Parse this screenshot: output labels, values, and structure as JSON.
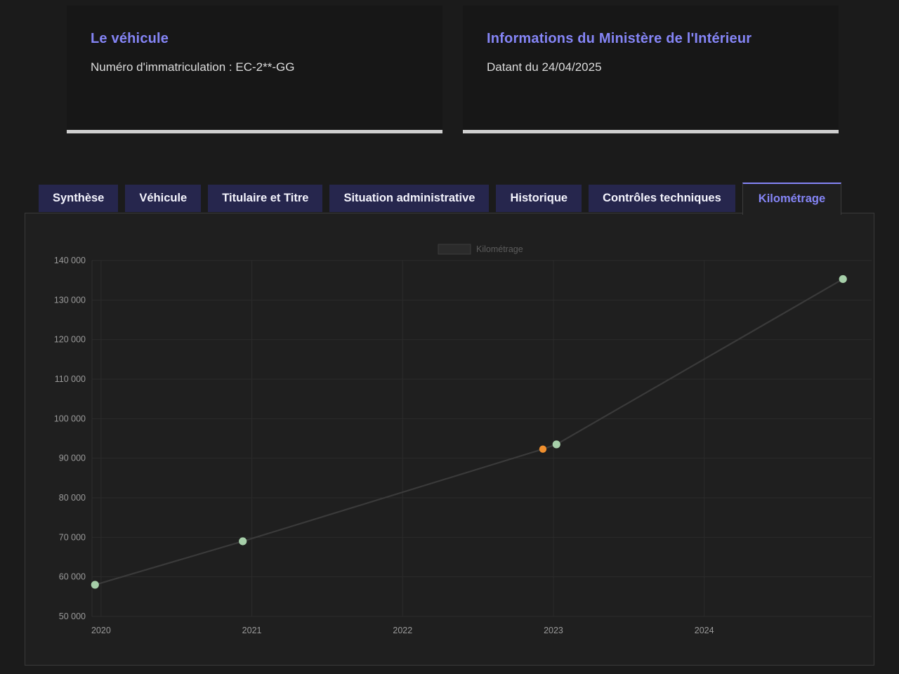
{
  "cards": [
    {
      "title": "Le véhicule",
      "subtitle": "Numéro d'immatriculation : EC-2**-GG"
    },
    {
      "title": "Informations du Ministère de l'Intérieur",
      "subtitle": "Datant du 24/04/2025"
    }
  ],
  "tabs": [
    {
      "label": "Synthèse",
      "active": false
    },
    {
      "label": "Véhicule",
      "active": false
    },
    {
      "label": "Titulaire et Titre",
      "active": false
    },
    {
      "label": "Situation administrative",
      "active": false
    },
    {
      "label": "Historique",
      "active": false
    },
    {
      "label": "Contrôles techniques",
      "active": false
    },
    {
      "label": "Kilométrage",
      "active": true
    }
  ],
  "colors": {
    "accent": "#8585f6",
    "page_bg": "#1b1b1b",
    "card_bg": "#171717",
    "card_bottom_bar": "#cfcfcf",
    "tab_bg": "#26264d",
    "panel_bg": "#1f1f1f",
    "panel_border": "#3a3a3a",
    "grid": "#2b2b2b",
    "axis_line": "#2e2e2e",
    "axis_text": "#9a9a9a",
    "line": "#3a3a3a",
    "point_green": "#a6cfa9",
    "point_orange": "#ef8f2e",
    "legend_text": "#5c5c5c",
    "legend_box_fill": "#2b2b2b",
    "legend_box_border": "#3d3d3d"
  },
  "chart_data": {
    "type": "line",
    "title": "Kilométrage",
    "legend": {
      "label": "Kilométrage",
      "position": "top-center"
    },
    "xlabel": "",
    "ylabel": "",
    "grid": true,
    "x_ticks": [
      2020,
      2021,
      2022,
      2023,
      2024
    ],
    "xlim": [
      2019.94,
      2025.11
    ],
    "y_ticks": [
      50000,
      60000,
      70000,
      80000,
      90000,
      100000,
      110000,
      120000,
      130000,
      140000
    ],
    "ylim": [
      50000,
      140000
    ],
    "y_tick_format": "space-thousands",
    "series": [
      {
        "name": "Kilométrage",
        "points": [
          {
            "x": 2019.96,
            "y": 58000,
            "marker": "green"
          },
          {
            "x": 2020.94,
            "y": 69000,
            "marker": "green"
          },
          {
            "x": 2022.93,
            "y": 92300,
            "marker": "orange"
          },
          {
            "x": 2023.02,
            "y": 93500,
            "marker": "green"
          },
          {
            "x": 2024.92,
            "y": 135300,
            "marker": "green"
          }
        ]
      }
    ]
  }
}
